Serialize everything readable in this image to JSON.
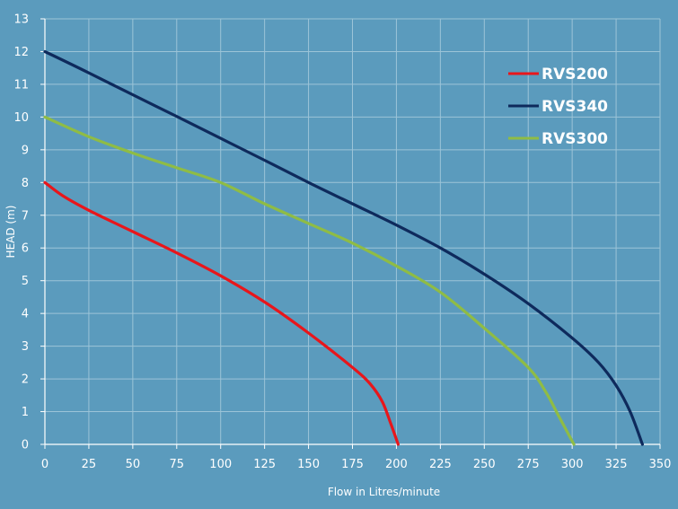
{
  "colors": {
    "background": "#5b9bbd",
    "grid": "#9cc4d8",
    "axis": "#ffffff",
    "text": "#ffffff"
  },
  "chart_data": {
    "type": "line",
    "title": "",
    "xlabel": "Flow in Litres/minute",
    "ylabel": "HEAD (m)",
    "xlim": [
      0,
      350
    ],
    "ylim": [
      0,
      13
    ],
    "xticks": [
      0,
      25,
      50,
      75,
      100,
      125,
      150,
      175,
      200,
      225,
      250,
      275,
      300,
      325,
      350
    ],
    "yticks": [
      0,
      1,
      2,
      3,
      4,
      5,
      6,
      7,
      8,
      9,
      10,
      11,
      12,
      13
    ],
    "xtick_labels": [
      "0",
      "25",
      "50",
      "75",
      "100",
      "125",
      "150",
      "175",
      "200",
      "225",
      "250",
      "275",
      "300",
      "325",
      "350"
    ],
    "ytick_labels": [
      "0",
      "1",
      "2",
      "3",
      "4",
      "5",
      "6",
      "7",
      "8",
      "9",
      "10",
      "11",
      "12",
      "13"
    ],
    "grid": true,
    "legend_position": "top-right",
    "series": [
      {
        "name": "RVS200",
        "color": "#e8161b",
        "points": [
          [
            0,
            8
          ],
          [
            10,
            7.6
          ],
          [
            25,
            7.15
          ],
          [
            50,
            6.5
          ],
          [
            75,
            5.85
          ],
          [
            100,
            5.15
          ],
          [
            125,
            4.35
          ],
          [
            150,
            3.4
          ],
          [
            175,
            2.35
          ],
          [
            185,
            1.85
          ],
          [
            192,
            1.3
          ],
          [
            197,
            0.6
          ],
          [
            201,
            0
          ]
        ]
      },
      {
        "name": "RVS340",
        "color": "#0e2a5c",
        "points": [
          [
            0,
            12
          ],
          [
            25,
            11.35
          ],
          [
            50,
            10.68
          ],
          [
            75,
            10.02
          ],
          [
            100,
            9.35
          ],
          [
            125,
            8.68
          ],
          [
            150,
            8.0
          ],
          [
            175,
            7.35
          ],
          [
            200,
            6.7
          ],
          [
            225,
            6.0
          ],
          [
            250,
            5.2
          ],
          [
            275,
            4.3
          ],
          [
            300,
            3.25
          ],
          [
            315,
            2.5
          ],
          [
            325,
            1.8
          ],
          [
            333,
            1.0
          ],
          [
            340,
            0
          ]
        ]
      },
      {
        "name": "RVS300",
        "color": "#8fbc45",
        "points": [
          [
            0,
            10
          ],
          [
            25,
            9.4
          ],
          [
            50,
            8.9
          ],
          [
            75,
            8.45
          ],
          [
            100,
            8.0
          ],
          [
            125,
            7.35
          ],
          [
            150,
            6.75
          ],
          [
            175,
            6.15
          ],
          [
            200,
            5.45
          ],
          [
            225,
            4.65
          ],
          [
            250,
            3.55
          ],
          [
            275,
            2.35
          ],
          [
            285,
            1.6
          ],
          [
            292,
            0.9
          ],
          [
            301,
            0
          ]
        ]
      }
    ]
  }
}
